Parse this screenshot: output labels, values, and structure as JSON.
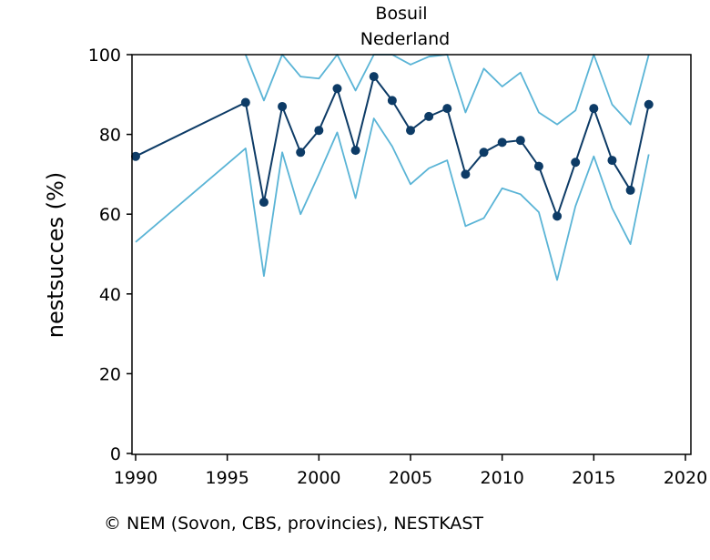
{
  "chart_data": {
    "type": "line",
    "title": "Bosuil",
    "subtitle": "Nederland",
    "xlabel": "",
    "ylabel": "nestsucces (%)",
    "xlim": [
      1990,
      2020
    ],
    "ylim": [
      0,
      100
    ],
    "x_ticks": [
      1990,
      1995,
      2000,
      2005,
      2010,
      2015,
      2020
    ],
    "y_ticks": [
      0,
      20,
      40,
      60,
      80,
      100
    ],
    "grid": false,
    "legend": "none",
    "series": [
      {
        "role": "estimate",
        "color": "#0d3b66",
        "markers": true,
        "x": [
          1990,
          1996,
          1997,
          1998,
          1999,
          2000,
          2001,
          2002,
          2003,
          2004,
          2005,
          2006,
          2007,
          2008,
          2009,
          2010,
          2011,
          2012,
          2013,
          2014,
          2015,
          2016,
          2017,
          2018
        ],
        "y": [
          74.5,
          88,
          63,
          87,
          75.5,
          81,
          91.5,
          76,
          94.5,
          88.5,
          81,
          84.5,
          86.5,
          70,
          75.5,
          78,
          78.5,
          72,
          59.5,
          73,
          86.5,
          73.5,
          66,
          87.5
        ]
      },
      {
        "role": "upper",
        "color": "#5ab4d6",
        "markers": false,
        "x": [
          1996,
          1997,
          1998,
          1999,
          2000,
          2001,
          2002,
          2003,
          2004,
          2005,
          2006,
          2007,
          2008,
          2009,
          2010,
          2011,
          2012,
          2013,
          2014,
          2015,
          2016,
          2017,
          2018
        ],
        "y": [
          100,
          88.5,
          100,
          94.5,
          94,
          100,
          91,
          100,
          100,
          97.5,
          99.5,
          100,
          85.5,
          96.5,
          92,
          95.5,
          85.5,
          82.5,
          86,
          100,
          87.5,
          82.5,
          100
        ]
      },
      {
        "role": "lower",
        "color": "#5ab4d6",
        "markers": false,
        "x": [
          1990,
          1996,
          1997,
          1998,
          1999,
          2000,
          2001,
          2002,
          2003,
          2004,
          2005,
          2006,
          2007,
          2008,
          2009,
          2010,
          2011,
          2012,
          2013,
          2014,
          2015,
          2016,
          2017,
          2018
        ],
        "y": [
          53,
          76.5,
          44.5,
          75.5,
          60,
          70,
          80.5,
          64,
          84,
          77,
          67.5,
          71.5,
          73.5,
          57,
          59,
          66.5,
          65,
          60.5,
          43.5,
          62,
          74.5,
          61.5,
          52.5,
          75
        ]
      }
    ],
    "footnote": "© NEM (Sovon, CBS, provincies), NESTKAST"
  }
}
